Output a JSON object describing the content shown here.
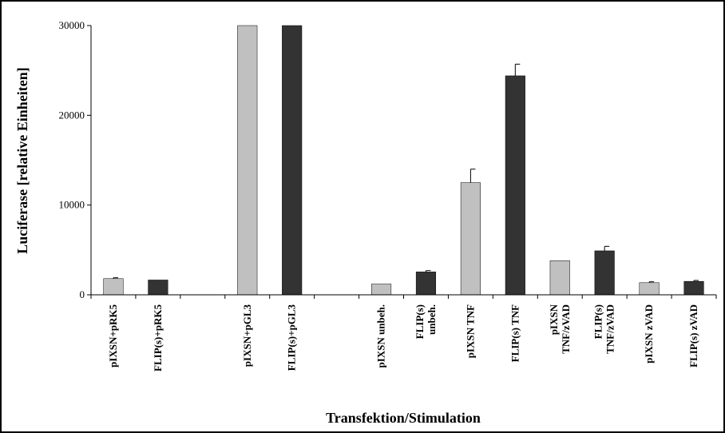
{
  "chart_data": {
    "type": "bar",
    "title": "",
    "xlabel": "Transfektion/Stimulation",
    "ylabel": "Luciferase [relative Einheiten]",
    "ylim": [
      0,
      30000
    ],
    "y_ticks": [
      "0",
      "10000",
      "20000",
      "30000"
    ],
    "grid": false,
    "legend": "none",
    "colors": {
      "light": "#c0c0c0",
      "dark": "#333333",
      "axis": "#000000"
    },
    "categories": [
      {
        "lines": [
          "pIXSN+pRK5"
        ],
        "value": 1800,
        "error": 100,
        "color": "light"
      },
      {
        "lines": [
          "FLIP(s)+pRK5"
        ],
        "value": 1650,
        "error": 0,
        "color": "dark"
      },
      {
        "lines": [
          ""
        ],
        "value": null,
        "error": 0,
        "color": "light"
      },
      {
        "lines": [
          "pIXSN+pGL3"
        ],
        "value": 30000,
        "error": 0,
        "color": "light"
      },
      {
        "lines": [
          "FLIP(s)+pGL3"
        ],
        "value": 30000,
        "error": 0,
        "color": "dark"
      },
      {
        "lines": [
          ""
        ],
        "value": null,
        "error": 0,
        "color": "light"
      },
      {
        "lines": [
          "pIXSN unbeh."
        ],
        "value": 1200,
        "error": 0,
        "color": "light"
      },
      {
        "lines": [
          "FLIP(s)",
          "unbeh."
        ],
        "value": 2550,
        "error": 150,
        "color": "dark"
      },
      {
        "lines": [
          "pIXSN TNF"
        ],
        "value": 12500,
        "error": 1500,
        "color": "light"
      },
      {
        "lines": [
          "FLIP(s) TNF"
        ],
        "value": 24400,
        "error": 1300,
        "color": "dark"
      },
      {
        "lines": [
          "pIXSN",
          "TNF/zVAD"
        ],
        "value": 3800,
        "error": 0,
        "color": "light"
      },
      {
        "lines": [
          "FLIP(s)",
          "TNF/zVAD"
        ],
        "value": 4900,
        "error": 500,
        "color": "dark"
      },
      {
        "lines": [
          "pIXSN zVAD"
        ],
        "value": 1350,
        "error": 100,
        "color": "light"
      },
      {
        "lines": [
          "FLIP(s) zVAD"
        ],
        "value": 1500,
        "error": 100,
        "color": "dark"
      }
    ]
  }
}
